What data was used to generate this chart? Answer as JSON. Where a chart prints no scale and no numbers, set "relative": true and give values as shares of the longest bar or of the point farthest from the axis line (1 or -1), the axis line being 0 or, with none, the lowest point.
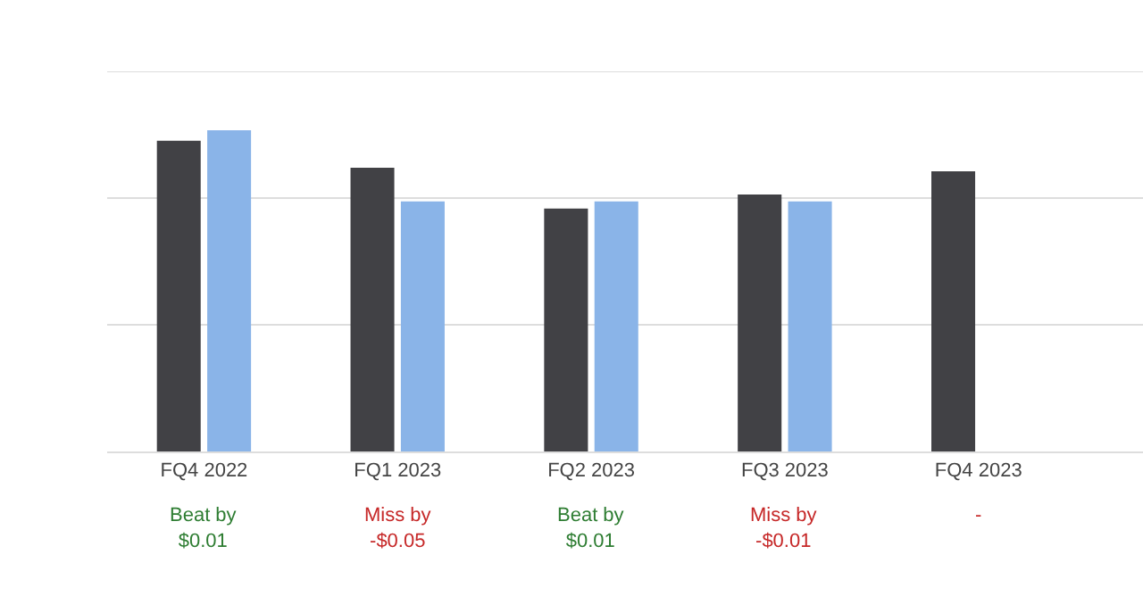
{
  "chart_data": {
    "type": "bar",
    "relative": true,
    "categories": [
      "FQ4 2022",
      "FQ1 2023",
      "FQ2 2023",
      "FQ3 2023",
      "FQ4 2023"
    ],
    "series": [
      {
        "color": "#414145",
        "values": [
          0.967,
          0.883,
          0.756,
          0.8,
          0.872
        ]
      },
      {
        "color": "#8ab4e8",
        "values": [
          1,
          0.778,
          0.778,
          0.778,
          null
        ]
      }
    ],
    "ref_lines": [
      {
        "axis": "y",
        "value": 0.394,
        "label": null,
        "color": "#dddddd"
      },
      {
        "axis": "y",
        "value": 0.789,
        "label": null,
        "color": "#dddddd"
      },
      {
        "axis": "y",
        "value": 1.183,
        "label": null,
        "color": "#dddddd"
      }
    ],
    "annotations": [
      "Beat by\n$0.01",
      "Miss by\n-$0.05",
      "Beat by\n$0.01",
      "Miss by\n-$0.01",
      "-"
    ]
  }
}
